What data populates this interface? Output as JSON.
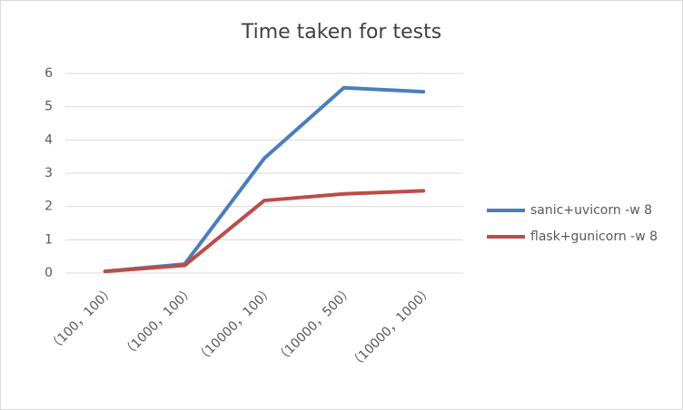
{
  "chart_data": {
    "type": "line",
    "title": "Time taken for tests",
    "categories": [
      "（100，100）",
      "（1000，100）",
      "（10000，100）",
      "（10000，500）",
      "（10000，1000）"
    ],
    "series": [
      {
        "name": "sanic+uvicorn -w 8",
        "color": "#4a7ebb",
        "values": [
          0.05,
          0.27,
          3.45,
          5.57,
          5.45
        ]
      },
      {
        "name": "flask+gunicorn -w 8",
        "color": "#be4b48",
        "values": [
          0.05,
          0.23,
          2.18,
          2.38,
          2.47
        ]
      }
    ],
    "ylim": [
      0,
      6
    ],
    "yticks": [
      0,
      1,
      2,
      3,
      4,
      5,
      6
    ],
    "grid": true,
    "legend": "right"
  }
}
